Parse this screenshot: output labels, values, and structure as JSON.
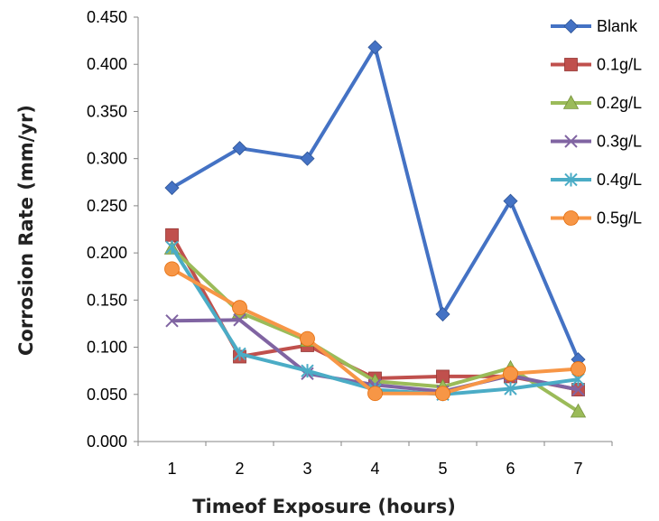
{
  "chart_data": {
    "type": "line",
    "xlabel": "Timeof Exposure (hours)",
    "ylabel": "Corrosion Rate (mm/yr)",
    "x": [
      1,
      2,
      3,
      4,
      5,
      6,
      7
    ],
    "x_tick_labels": [
      "1",
      "2",
      "3",
      "4",
      "5",
      "6",
      "7"
    ],
    "ylim": [
      0,
      0.45
    ],
    "y_tick_labels": [
      "0.000",
      "0.050",
      "0.100",
      "0.150",
      "0.200",
      "0.250",
      "0.300",
      "0.350",
      "0.400",
      "0.450"
    ],
    "grid": false,
    "legend_position": "right",
    "series": [
      {
        "name": "Blank",
        "color": "#4472c4",
        "marker": "diamond",
        "values": [
          0.269,
          0.311,
          0.3,
          0.418,
          0.135,
          0.255,
          0.087
        ]
      },
      {
        "name": "0.1g/L",
        "color": "#c0504d",
        "marker": "square",
        "values": [
          0.219,
          0.09,
          0.102,
          0.067,
          0.069,
          0.069,
          0.055
        ]
      },
      {
        "name": "0.2g/L",
        "color": "#9bbb59",
        "marker": "triangle",
        "values": [
          0.205,
          0.137,
          0.107,
          0.064,
          0.058,
          0.078,
          0.032
        ]
      },
      {
        "name": "0.3g/L",
        "color": "#8064a2",
        "marker": "x",
        "values": [
          0.128,
          0.129,
          0.072,
          0.06,
          0.053,
          0.07,
          0.055
        ]
      },
      {
        "name": "0.4g/L",
        "color": "#4bacc6",
        "marker": "star",
        "values": [
          0.206,
          0.093,
          0.075,
          0.055,
          0.05,
          0.056,
          0.066
        ]
      },
      {
        "name": "0.5g/L",
        "color": "#f79646",
        "marker": "circle",
        "values": [
          0.183,
          0.142,
          0.109,
          0.051,
          0.051,
          0.072,
          0.077
        ]
      }
    ]
  }
}
